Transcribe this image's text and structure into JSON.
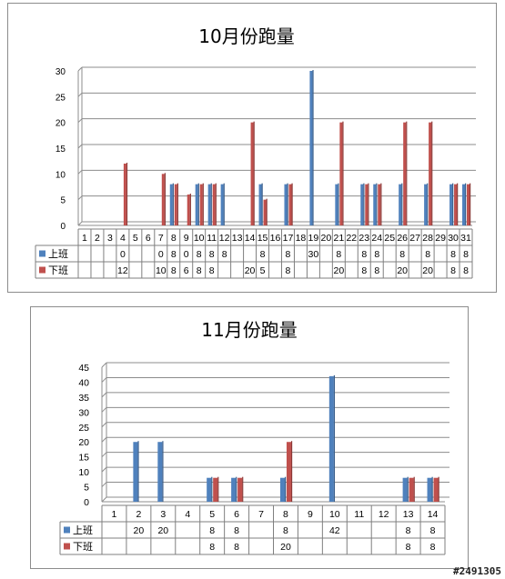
{
  "chart_data": [
    {
      "type": "bar",
      "title": "10月份跑量",
      "categories": [
        "1",
        "2",
        "3",
        "4",
        "5",
        "6",
        "7",
        "8",
        "9",
        "10",
        "11",
        "12",
        "13",
        "14",
        "15",
        "16",
        "17",
        "18",
        "19",
        "20",
        "21",
        "22",
        "23",
        "24",
        "25",
        "26",
        "27",
        "28",
        "29",
        "30",
        "31"
      ],
      "series": [
        {
          "name": "上班",
          "values": [
            null,
            null,
            null,
            0,
            null,
            null,
            0,
            8,
            0,
            8,
            8,
            8,
            null,
            null,
            8,
            null,
            8,
            null,
            30,
            null,
            8,
            null,
            8,
            8,
            null,
            8,
            null,
            8,
            null,
            8,
            8
          ]
        },
        {
          "name": "下班",
          "values": [
            null,
            null,
            null,
            12,
            null,
            null,
            10,
            8,
            6,
            8,
            8,
            null,
            null,
            20,
            5,
            null,
            8,
            null,
            null,
            null,
            20,
            null,
            8,
            8,
            null,
            20,
            null,
            20,
            null,
            8,
            8
          ]
        }
      ],
      "ylim": [
        0,
        30
      ],
      "yticks": [
        0,
        5,
        10,
        15,
        20,
        25,
        30
      ],
      "grid": true,
      "legend": "data-table",
      "series_colors": [
        "#4f81bd",
        "#c0504d"
      ]
    },
    {
      "type": "bar",
      "title": "11月份跑量",
      "categories": [
        "1",
        "2",
        "3",
        "4",
        "5",
        "6",
        "7",
        "8",
        "9",
        "10",
        "11",
        "12",
        "13",
        "14"
      ],
      "series": [
        {
          "name": "上班",
          "values": [
            null,
            20,
            20,
            null,
            8,
            8,
            null,
            8,
            null,
            42,
            null,
            null,
            8,
            8
          ]
        },
        {
          "name": "下班",
          "values": [
            null,
            null,
            null,
            null,
            8,
            8,
            null,
            20,
            null,
            null,
            null,
            null,
            8,
            8
          ]
        }
      ],
      "ylim": [
        0,
        45
      ],
      "yticks": [
        0,
        5,
        10,
        15,
        20,
        25,
        30,
        35,
        40,
        45
      ],
      "grid": true,
      "legend": "data-table",
      "series_colors": [
        "#4f81bd",
        "#c0504d"
      ]
    }
  ],
  "watermark": "#2491305"
}
